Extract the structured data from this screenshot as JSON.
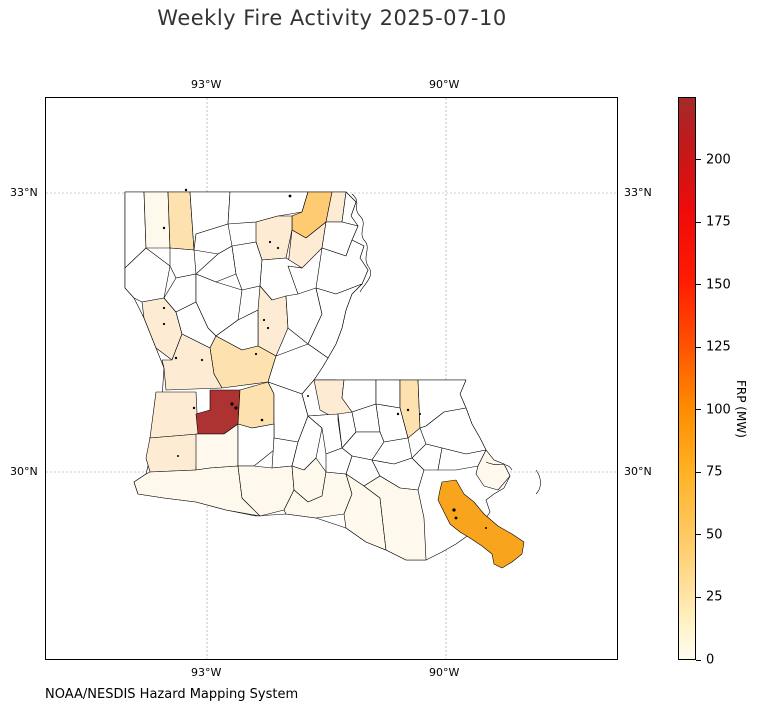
{
  "title": "Weekly Fire Activity 2025-07-10",
  "source": "NOAA/NESDIS Hazard Mapping System",
  "map": {
    "region": "Louisiana parishes",
    "gridlines": true,
    "lon_ticks": [
      "93°W",
      "90°W"
    ],
    "lat_ticks": [
      "33°N",
      "30°N"
    ]
  },
  "colorbar": {
    "label": "FRP (MW)",
    "range": [
      0,
      225
    ],
    "ticks": [
      "0",
      "25",
      "50",
      "75",
      "100",
      "125",
      "150",
      "175",
      "200"
    ],
    "colormap": [
      "#fffdf0",
      "#ffd27a",
      "#ffa500",
      "#ff4500",
      "#ff0000",
      "#a52a2a"
    ]
  },
  "colors": {
    "very_low": "#fff8ec",
    "low": "#fdebd3",
    "low_mid": "#fde2b0",
    "mid": "#ffcb72",
    "high": "#f8a51d",
    "max": "#ad3333",
    "outline": "#000000"
  }
}
